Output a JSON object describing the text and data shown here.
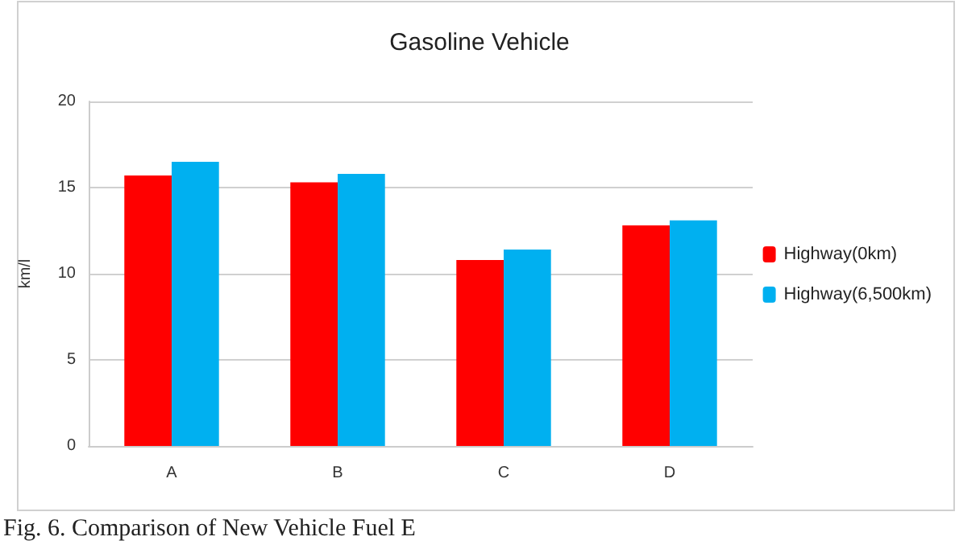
{
  "chart_data": {
    "type": "bar",
    "title": "Gasoline Vehicle",
    "ylabel": "km/l",
    "categories": [
      "A",
      "B",
      "C",
      "D"
    ],
    "series": [
      {
        "name": "Highway(0km)",
        "color": "#ff0000",
        "values": [
          15.7,
          15.3,
          10.8,
          12.8
        ]
      },
      {
        "name": "Highway(6,500km)",
        "color": "#00b0f0",
        "values": [
          16.5,
          15.8,
          11.4,
          13.1
        ]
      }
    ],
    "ylim": [
      0,
      20
    ],
    "yticks": [
      0,
      5,
      10,
      15,
      20
    ],
    "grid": "y",
    "legend": "right",
    "annotations": [
      "Fig. 6. Comparison of New Vehicle Fuel E"
    ]
  }
}
